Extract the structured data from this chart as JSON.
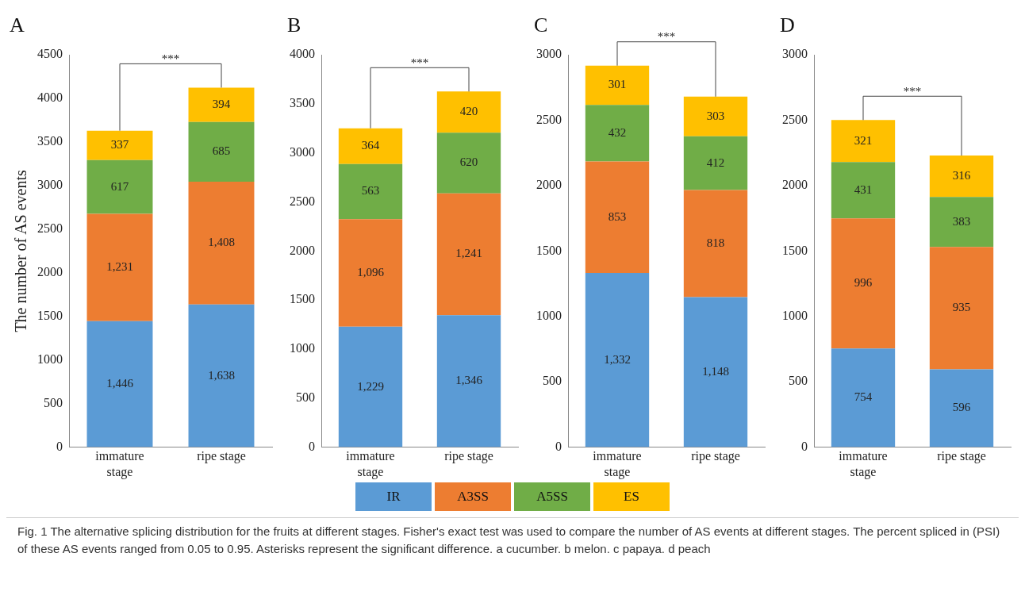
{
  "chart_data": [
    {
      "type": "bar",
      "title": "A",
      "ylabel": "The number of AS events",
      "categories": [
        "immature stage",
        "ripe stage"
      ],
      "stacked": true,
      "ylim": [
        0,
        4500
      ],
      "yticks": [
        0,
        500,
        1000,
        1500,
        2000,
        2500,
        3000,
        3500,
        4000,
        4500
      ],
      "grid": false,
      "legend": "bottom",
      "annotations": [
        "***"
      ],
      "series": [
        {
          "name": "IR",
          "color": "#5b9bd5",
          "values": [
            1446,
            1638
          ],
          "value_labels": [
            "1,446",
            "1,638"
          ]
        },
        {
          "name": "A3SS",
          "color": "#ed7d31",
          "values": [
            1231,
            1408
          ],
          "value_labels": [
            "1,231",
            "1,408"
          ]
        },
        {
          "name": "A5SS",
          "color": "#70ad47",
          "values": [
            617,
            685
          ],
          "value_labels": [
            "617",
            "685"
          ]
        },
        {
          "name": "ES",
          "color": "#ffc000",
          "values": [
            337,
            394
          ],
          "value_labels": [
            "337",
            "394"
          ]
        }
      ]
    },
    {
      "type": "bar",
      "title": "B",
      "categories": [
        "immature stage",
        "ripe stage"
      ],
      "stacked": true,
      "ylim": [
        0,
        4000
      ],
      "yticks": [
        0,
        500,
        1000,
        1500,
        2000,
        2500,
        3000,
        3500,
        4000
      ],
      "grid": false,
      "annotations": [
        "***"
      ],
      "series": [
        {
          "color": "#5b9bd5",
          "values": [
            1229,
            1346
          ],
          "value_labels": [
            "1,229",
            "1,346"
          ]
        },
        {
          "color": "#ed7d31",
          "values": [
            1096,
            1241
          ],
          "value_labels": [
            "1,096",
            "1,241"
          ]
        },
        {
          "color": "#70ad47",
          "values": [
            563,
            620
          ],
          "value_labels": [
            "563",
            "620"
          ]
        },
        {
          "color": "#ffc000",
          "values": [
            364,
            420
          ],
          "value_labels": [
            "364",
            "420"
          ]
        }
      ]
    },
    {
      "type": "bar",
      "title": "C",
      "categories": [
        "immature stage",
        "ripe stage"
      ],
      "stacked": true,
      "ylim": [
        0,
        3000
      ],
      "yticks": [
        0,
        500,
        1000,
        1500,
        2000,
        2500,
        3000
      ],
      "grid": false,
      "annotations": [
        "***"
      ],
      "series": [
        {
          "color": "#5b9bd5",
          "values": [
            1332,
            1148
          ],
          "value_labels": [
            "1,332",
            "1,148"
          ]
        },
        {
          "color": "#ed7d31",
          "values": [
            853,
            818
          ],
          "value_labels": [
            "853",
            "818"
          ]
        },
        {
          "color": "#70ad47",
          "values": [
            432,
            412
          ],
          "value_labels": [
            "432",
            "412"
          ]
        },
        {
          "color": "#ffc000",
          "values": [
            301,
            303
          ],
          "value_labels": [
            "301",
            "303"
          ]
        }
      ]
    },
    {
      "type": "bar",
      "title": "D",
      "categories": [
        "immature stage",
        "ripe stage"
      ],
      "stacked": true,
      "ylim": [
        0,
        3000
      ],
      "yticks": [
        0,
        500,
        1000,
        1500,
        2000,
        2500,
        3000
      ],
      "grid": false,
      "annotations": [
        "***"
      ],
      "series": [
        {
          "color": "#5b9bd5",
          "values": [
            754,
            596
          ],
          "value_labels": [
            "754",
            "596"
          ]
        },
        {
          "color": "#ed7d31",
          "values": [
            996,
            935
          ],
          "value_labels": [
            "996",
            "935"
          ]
        },
        {
          "color": "#70ad47",
          "values": [
            431,
            383
          ],
          "value_labels": [
            "431",
            "383"
          ]
        },
        {
          "color": "#ffc000",
          "values": [
            321,
            316
          ],
          "value_labels": [
            "321",
            "316"
          ]
        }
      ]
    },
    {
      "type": "other",
      "annotations": [
        "Fig. 1 The alternative splicing distribution for the fruits at different stages. Fisher's exact test was used to compare the number of AS events at different stages. The percent spliced in (PSI) of these AS events ranged from 0.05 to 0.95. Asterisks represent the significant difference. a cucumber. b melon. c papaya. d peach"
      ]
    }
  ]
}
